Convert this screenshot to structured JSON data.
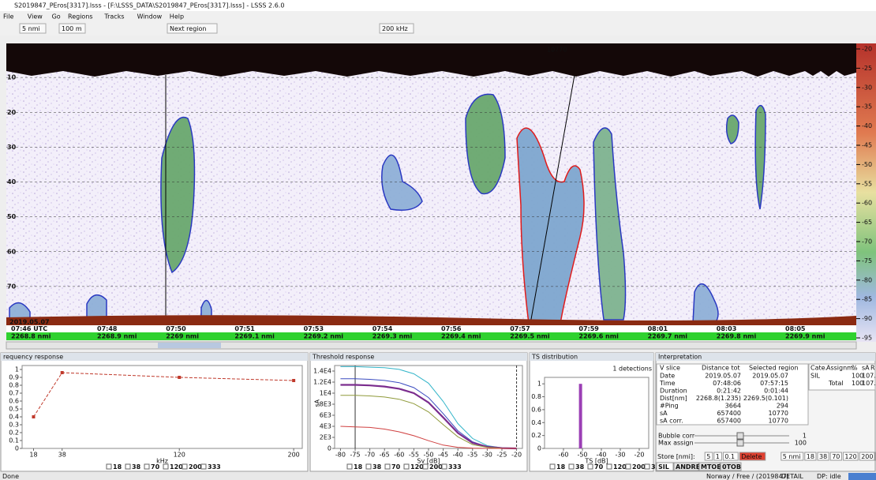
{
  "window": {
    "title": "S2019847_PEros[3317].lsss - [F:\\LSSS_DATA\\S2019847_PEros[3317].lsss] - LSSS 2.6.0",
    "menu": [
      "File",
      "View",
      "Go",
      "Regions",
      "Tracks",
      "Window",
      "Help"
    ],
    "toolbar": [
      "5 nmi",
      "100 m",
      "Next region",
      "200 kHz"
    ]
  },
  "echogram": {
    "depth_lim": [
      0,
      80
    ],
    "depth_ticks": [
      10,
      20,
      30,
      40,
      50,
      60,
      70
    ],
    "colorbar_ticks": [
      -20,
      -25,
      -30,
      -35,
      -40,
      -45,
      -50,
      -55,
      -60,
      -65,
      -70,
      -75,
      -80,
      -85,
      -90,
      -95
    ],
    "region_label": "10770",
    "date": "2019.05.07",
    "times": [
      "07:46 UTC",
      "07:48",
      "07:50",
      "07:51",
      "07:53",
      "07:54",
      "07:56",
      "07:57",
      "07:59",
      "08:01",
      "08:03",
      "08:05"
    ],
    "distances": [
      "2268.8 nmi",
      "2268.9 nmi",
      "2269 nmi",
      "2269.1 nmi",
      "2269.2 nmi",
      "2269.3 nmi",
      "2269.4 nmi",
      "2269.5 nmi",
      "2269.6 nmi",
      "2269.7 nmi",
      "2269.8 nmi",
      "2269.9 nmi"
    ]
  },
  "chart_data": [
    {
      "type": "line",
      "title": "requency response",
      "x_label": "kHz",
      "x": [
        18,
        38,
        120,
        200
      ],
      "xlim": [
        10,
        206
      ],
      "xticks": [
        18,
        38,
        120,
        200
      ],
      "ylim": [
        0,
        1.05
      ],
      "yticks": [
        0,
        0.1,
        0.2,
        0.3,
        0.4,
        0.5,
        0.6,
        0.7,
        0.8,
        0.9,
        1
      ],
      "series": [
        {
          "color": "#c0392b",
          "values": [
            0.4,
            0.96,
            0.9,
            0.86
          ]
        }
      ],
      "channels": [
        "18",
        "38",
        "70",
        "120",
        "200",
        "333"
      ]
    },
    {
      "type": "line",
      "title": "Threshold response",
      "x_label": "Sv [dB]",
      "y_label": "sA",
      "x": [
        -80,
        -75,
        -70,
        -65,
        -60,
        -55,
        -50,
        -45,
        -40,
        -35,
        -30,
        -25,
        -20
      ],
      "xlim": [
        -82,
        -18
      ],
      "xticks": [
        -80,
        -75,
        -70,
        -65,
        -60,
        -55,
        -50,
        -45,
        -40,
        -35,
        -30,
        -25,
        -20
      ],
      "ylim": [
        0,
        15000
      ],
      "yticks": [
        0,
        {
          "value": 2000,
          "label": "2E3"
        },
        {
          "value": 4000,
          "label": "4E3"
        },
        {
          "value": 6000,
          "label": "6E3"
        },
        {
          "value": 8000,
          "label": "8E3"
        },
        {
          "value": 10000,
          "label": "1E4"
        },
        {
          "value": 12000,
          "label": "1.2E4"
        },
        {
          "value": 14000,
          "label": "1.4E4"
        }
      ],
      "markers": [
        -75,
        -20
      ],
      "series": [
        {
          "color": "#33b5c9",
          "values": [
            14800,
            14800,
            14700,
            14600,
            14300,
            13500,
            11800,
            8500,
            4500,
            1800,
            500,
            100,
            0
          ]
        },
        {
          "color": "#3b4cc0",
          "values": [
            12600,
            12600,
            12500,
            12300,
            11900,
            11000,
            9200,
            6300,
            3200,
            1200,
            300,
            60,
            0
          ]
        },
        {
          "color": "#7b2d8e",
          "values": [
            11500,
            11500,
            11400,
            11200,
            10800,
            10000,
            8300,
            5600,
            2800,
            1000,
            300,
            50,
            0
          ]
        },
        {
          "color": "#8f9a3a",
          "values": [
            9600,
            9600,
            9500,
            9300,
            8900,
            8100,
            6600,
            4300,
            2100,
            700,
            200,
            30,
            0
          ]
        },
        {
          "color": "#d04040",
          "values": [
            4000,
            3900,
            3800,
            3500,
            3000,
            2300,
            1400,
            600,
            200,
            50,
            0,
            0,
            0
          ]
        }
      ],
      "channels": [
        "18",
        "38",
        "70",
        "120",
        "200",
        "333"
      ]
    },
    {
      "type": "bar",
      "title": "TS distribution",
      "annotation": "1 detections",
      "x_label": "TS [dB]",
      "x": [
        -51
      ],
      "xlim": [
        -70,
        -15
      ],
      "xticks": [
        -60,
        -50,
        -40,
        -30,
        -20
      ],
      "ylim": [
        0,
        1.1
      ],
      "yticks": [
        0,
        0.2,
        0.4,
        0.6,
        0.8,
        1
      ],
      "series": [
        {
          "color": "#9b3fb5",
          "values": [
            1
          ]
        }
      ],
      "channels": [
        "18",
        "38",
        "70",
        "120",
        "200",
        "333"
      ]
    }
  ],
  "interpretation": {
    "title": "Interpretation",
    "header": [
      "V slice",
      "Distance tot",
      "Selected region"
    ],
    "rows": [
      [
        "Date",
        "2019.05.07",
        "2019.05.07"
      ],
      [
        "Time",
        "07:48:06",
        "07:57:15"
      ],
      [
        "Duration",
        "0:21:42",
        "0:01:44"
      ],
      [
        "Dist[nm]",
        "2268.8(1.235)",
        "2269.5(0.101)"
      ],
      [
        "#Ping",
        "3664",
        "294"
      ],
      [
        "sA",
        "657400",
        "10770"
      ],
      [
        "sA corr.",
        "657400",
        "10770"
      ]
    ],
    "assign_header": [
      "Cate.",
      "Assignm.",
      "%",
      "sA",
      "R"
    ],
    "assign_rows": [
      [
        "SIL",
        "",
        "100",
        "107..."
      ],
      [
        "",
        "Total",
        "100",
        "107..."
      ]
    ],
    "bubble_corr": [
      "Bubble corr",
      "1"
    ],
    "max_assign": [
      "Max assign",
      "100"
    ],
    "store": [
      "Store [nmi]:",
      "5",
      "1",
      "0.1",
      "Delete",
      "5 nmi",
      "18",
      "38",
      "70",
      "120",
      "200",
      "333"
    ],
    "tabs": [
      "SIL",
      "ANDRE",
      "MTOB",
      "0TOB"
    ]
  },
  "status": [
    "Done",
    "Norway / Free / (2019847)",
    "DETAIL",
    "DP: idle"
  ]
}
